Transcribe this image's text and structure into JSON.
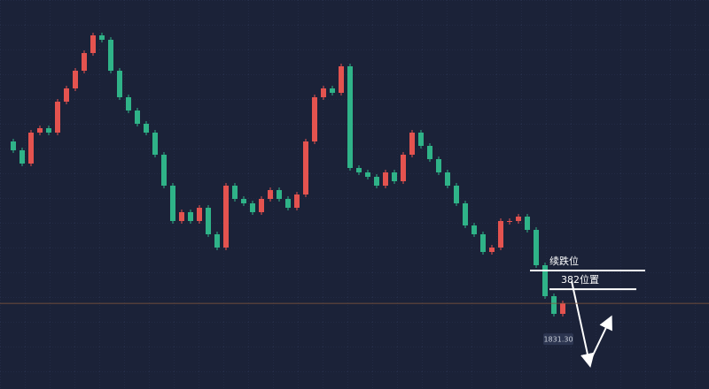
{
  "chart_data": {
    "type": "candlestick",
    "colors": {
      "up": "#e4534f",
      "down": "#2fb388"
    },
    "ylim": [
      1996,
      1784.8
    ],
    "close": [
      1919.2,
      1914.4,
      1907.2,
      1924,
      1926.4,
      1924,
      1940.8,
      1948,
      1957.6,
      1967.2,
      1976.8,
      1974.4,
      1957.6,
      1943.2,
      1936,
      1928.8,
      1924,
      1912,
      1895.2,
      1876,
      1880.8,
      1876,
      1883.2,
      1868.8,
      1861.6,
      1895.2,
      1888,
      1885.6,
      1880.8,
      1888,
      1892.8,
      1888,
      1883.2,
      1890.4,
      1919.2,
      1943.2,
      1948,
      1945.6,
      1960,
      1904.8,
      1902.4,
      1900,
      1895.2,
      1902.4,
      1897.6,
      1912,
      1924,
      1916.8,
      1909.6,
      1902.4,
      1895.2,
      1885.6,
      1873.6,
      1868.8,
      1859.2,
      1861.6,
      1876,
      1876,
      1878.4,
      1871.2,
      1852,
      1835.2,
      1825.6,
      1831.3
    ],
    "price_line": {
      "value": 1831.3,
      "label": "1831.30"
    },
    "levels": [
      {
        "label": "续跌位",
        "value": 1849.1
      },
      {
        "label": "382位置",
        "value": 1839.0
      }
    ]
  }
}
